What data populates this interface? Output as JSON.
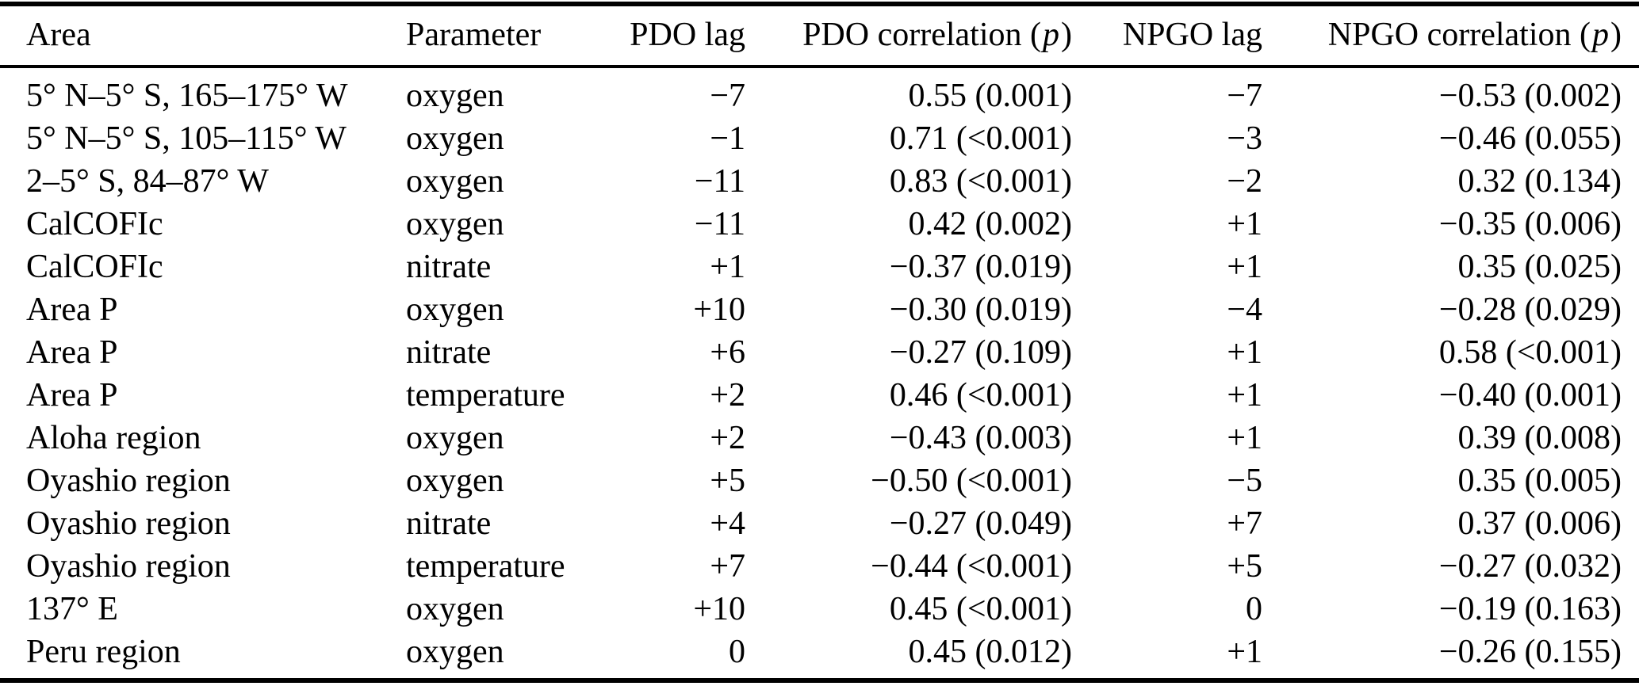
{
  "table": {
    "headers": [
      {
        "label": "Area"
      },
      {
        "label": "Parameter"
      },
      {
        "label": "PDO lag"
      },
      {
        "label": "PDO correlation (",
        "italic": "p",
        "after": ")"
      },
      {
        "label": "NPGO lag"
      },
      {
        "label": "NPGO correlation (",
        "italic": "p",
        "after": ")"
      }
    ],
    "rows": [
      [
        "5° N–5° S, 165–175° W",
        "oxygen",
        "−7",
        "0.55 (0.001)",
        "−7",
        "−0.53 (0.002)"
      ],
      [
        "5° N–5° S, 105–115° W",
        "oxygen",
        "−1",
        "0.71 (<0.001)",
        "−3",
        "−0.46 (0.055)"
      ],
      [
        "2–5° S, 84–87° W",
        "oxygen",
        "−11",
        "0.83 (<0.001)",
        "−2",
        "0.32 (0.134)"
      ],
      [
        "CalCOFIc",
        "oxygen",
        "−11",
        "0.42 (0.002)",
        "+1",
        "−0.35 (0.006)"
      ],
      [
        "CalCOFIc",
        "nitrate",
        "+1",
        "−0.37 (0.019)",
        "+1",
        "0.35 (0.025)"
      ],
      [
        "Area P",
        "oxygen",
        "+10",
        "−0.30 (0.019)",
        "−4",
        "−0.28 (0.029)"
      ],
      [
        "Area P",
        "nitrate",
        "+6",
        "−0.27 (0.109)",
        "+1",
        "0.58 (<0.001)"
      ],
      [
        "Area P",
        "temperature",
        "+2",
        "0.46 (<0.001)",
        "+1",
        "−0.40 (0.001)"
      ],
      [
        "Aloha region",
        "oxygen",
        "+2",
        "−0.43 (0.003)",
        "+1",
        "0.39 (0.008)"
      ],
      [
        "Oyashio region",
        "oxygen",
        "+5",
        "−0.50 (<0.001)",
        "−5",
        "0.35 (0.005)"
      ],
      [
        "Oyashio region",
        "nitrate",
        "+4",
        "−0.27 (0.049)",
        "+7",
        "0.37 (0.006)"
      ],
      [
        "Oyashio region",
        "temperature",
        "+7",
        "−0.44 (<0.001)",
        "+5",
        "−0.27 (0.032)"
      ],
      [
        "137° E",
        "oxygen",
        "+10",
        "0.45 (<0.001)",
        "0",
        "−0.19 (0.163)"
      ],
      [
        "Peru region",
        "oxygen",
        "0",
        "0.45 (0.012)",
        "+1",
        "−0.26 (0.155)"
      ]
    ]
  }
}
